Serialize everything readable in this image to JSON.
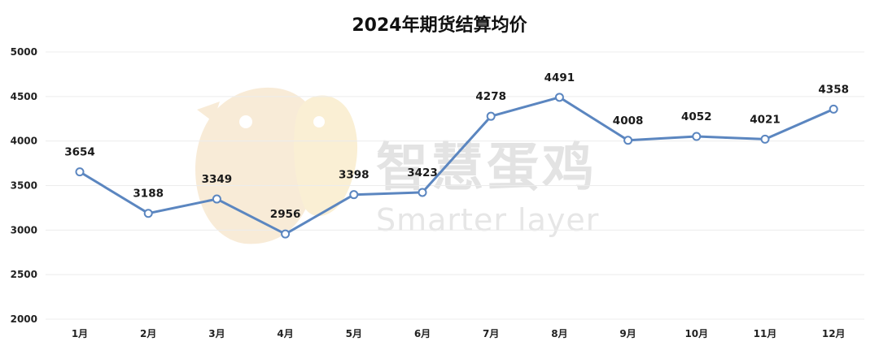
{
  "chart_data": {
    "type": "line",
    "title": "2024年期货结算均价",
    "categories": [
      "1月",
      "2月",
      "3月",
      "4月",
      "5月",
      "6月",
      "7月",
      "8月",
      "9月",
      "10月",
      "11月",
      "12月"
    ],
    "series": [
      {
        "values": [
          3654,
          3188,
          3349,
          2956,
          3398,
          3423,
          4278,
          4491,
          4008,
          4052,
          4021,
          4358
        ]
      }
    ],
    "data_labels": [
      "3654",
      "3188",
      "3349",
      "2956",
      "3398",
      "3423",
      "4278",
      "4491",
      "4008",
      "4052",
      "4021",
      "4358"
    ],
    "ylim": [
      2000,
      5000
    ],
    "yticks": [
      "2000",
      "2500",
      "3000",
      "3500",
      "4000",
      "4500",
      "5000"
    ],
    "grid": true,
    "legend": "none",
    "colors": {
      "line": "#5b86c0",
      "marker_fill": "#ffffff",
      "grid": "#ececec"
    }
  },
  "watermark": {
    "logo": "egg-mascot-icon",
    "text_cn": "智慧蛋鸡",
    "text_en": "Smarter layer"
  }
}
